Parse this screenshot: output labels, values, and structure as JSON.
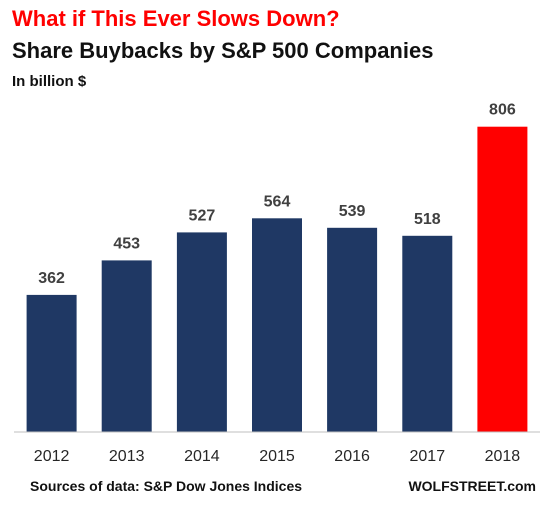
{
  "chart_data": {
    "type": "bar",
    "title": "What if This Ever Slows Down?",
    "subtitle": "Share Buybacks by S&P 500 Companies",
    "unit_label": "In billion $",
    "categories": [
      "2012",
      "2013",
      "2014",
      "2015",
      "2016",
      "2017",
      "2018"
    ],
    "values": [
      362,
      453,
      527,
      564,
      539,
      518,
      806
    ],
    "ylim": [
      0,
      850
    ],
    "grid": false,
    "legend": "none",
    "colors": {
      "bar": "#1f3864",
      "highlight": "#ff0000",
      "highlight_index": 6
    }
  },
  "footer": {
    "source": "Sources of data: S&P Dow Jones Indices",
    "brand": "WOLFSTREET.com"
  }
}
